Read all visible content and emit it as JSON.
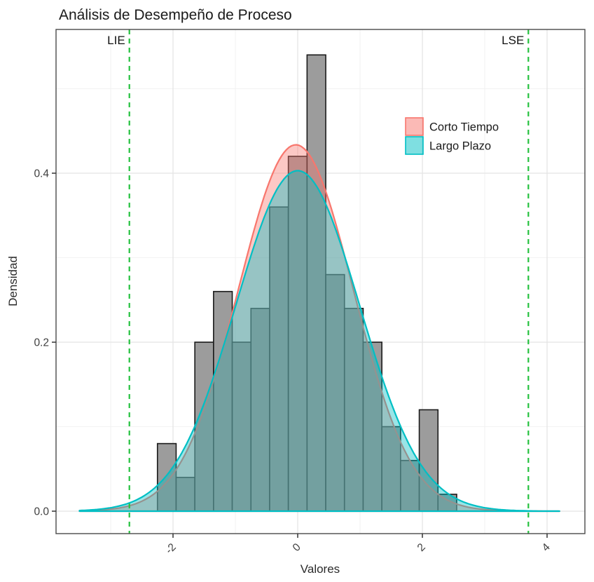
{
  "title": "Análisis de Desempeño de Proceso",
  "axes": {
    "x_label": "Valores",
    "y_label": "Densidad",
    "x_tick_labels": [
      "-2",
      "0",
      "2",
      "4"
    ],
    "x_tick_values": [
      -2,
      0,
      2,
      4
    ],
    "x_minor_values": [
      -3,
      -1,
      1,
      3
    ],
    "y_tick_labels": [
      "0.0",
      "0.2",
      "0.4"
    ],
    "y_tick_values": [
      0,
      0.2,
      0.4
    ],
    "y_minor_values": [
      0.1,
      0.3,
      0.5
    ]
  },
  "spec_limits": {
    "lie_label": "LIE",
    "lse_label": "LSE",
    "lie_x": -2.7,
    "lse_x": 3.7,
    "line_color": "#25C13F"
  },
  "legend": {
    "items": [
      {
        "label": "Corto Tiempo",
        "color": "#F8766D"
      },
      {
        "label": "Largo Plazo",
        "color": "#00BFC4"
      }
    ]
  },
  "colors": {
    "bar_fill": "#9C9C9C",
    "bar_stroke": "#1A1A1A",
    "grid_major": "#E4E4E4",
    "grid_minor": "#F2F2F2",
    "panel_border": "#4A4A4A",
    "tick_mark": "#333333",
    "axis_text": "#404040",
    "title_text": "#1A1A1A"
  },
  "chart_data": {
    "type": "histogram+density",
    "title": "Análisis de Desempeño de Proceso",
    "xlabel": "Valores",
    "ylabel": "Densidad",
    "xlim": [
      -3.88,
      4.61
    ],
    "ylim": [
      0,
      0.57
    ],
    "grid": true,
    "legend_position": "inside top-right",
    "histogram": {
      "bin_start": -2.25,
      "bin_width": 0.3,
      "densities": [
        0.08,
        0.04,
        0.2,
        0.26,
        0.2,
        0.24,
        0.36,
        0.42,
        0.54,
        0.28,
        0.24,
        0.2,
        0.1,
        0.06,
        0.12,
        0.02
      ]
    },
    "density_series": [
      {
        "name": "Corto Tiempo",
        "distribution": "normal",
        "mean": -0.03,
        "sd": 0.92,
        "peak_density": 0.435,
        "color": "#F8766D",
        "fill_alpha": 0.4,
        "x_range": [
          -3.5,
          4.2
        ]
      },
      {
        "name": "Largo Plazo",
        "distribution": "normal",
        "mean": 0.0,
        "sd": 0.99,
        "peak_density": 0.403,
        "color": "#00BFC4",
        "fill_alpha": 0.4,
        "x_range": [
          -3.5,
          4.2
        ]
      }
    ],
    "vlines": [
      {
        "label": "LIE",
        "x": -2.7,
        "style": "dashed",
        "color": "#25C13F"
      },
      {
        "label": "LSE",
        "x": 3.7,
        "style": "dashed",
        "color": "#25C13F"
      }
    ]
  }
}
